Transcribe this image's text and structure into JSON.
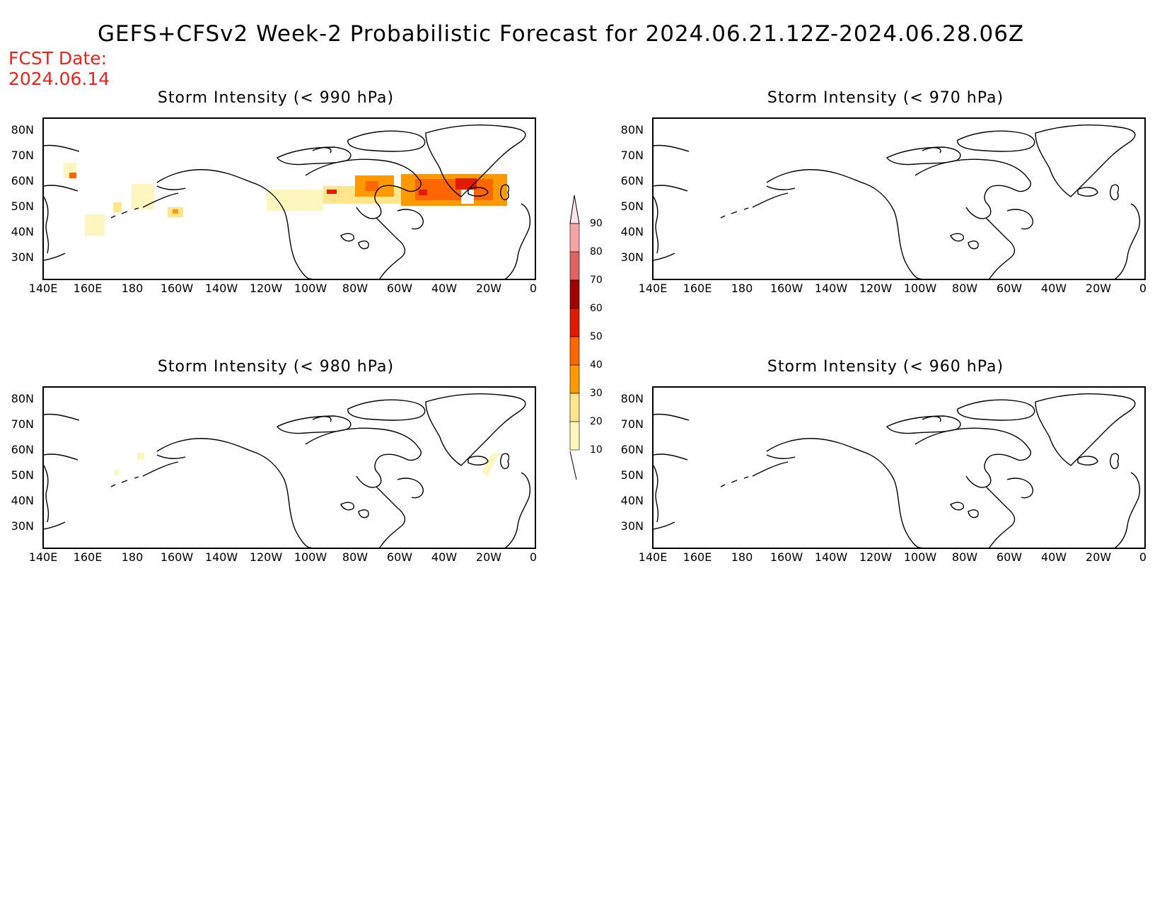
{
  "title": "GEFS+CFSv2 Week-2 Probabilistic Forecast for 2024.06.21.12Z-2024.06.28.06Z",
  "fcst_date_label": "FCST Date:",
  "fcst_date_value": "2024.06.14",
  "panels": [
    {
      "title": "Storm Intensity (< 990 hPa)"
    },
    {
      "title": "Storm Intensity (< 970 hPa)"
    },
    {
      "title": "Storm Intensity (< 980 hPa)"
    },
    {
      "title": "Storm Intensity (< 960 hPa)"
    }
  ],
  "y_ticks": [
    "80N",
    "70N",
    "60N",
    "50N",
    "40N",
    "30N"
  ],
  "x_ticks": [
    "140E",
    "160E",
    "180",
    "160W",
    "140W",
    "120W",
    "100W",
    "80W",
    "60W",
    "40W",
    "20W",
    "0"
  ],
  "colorbar": {
    "labels": [
      "90",
      "80",
      "70",
      "60",
      "50",
      "40",
      "30",
      "20",
      "10"
    ],
    "colors": [
      "#ffe6e6",
      "#f5a3a3",
      "#e06363",
      "#a30000",
      "#e01b00",
      "#ff6600",
      "#ff9900",
      "#ffe68c",
      "#fff6bf"
    ]
  }
}
